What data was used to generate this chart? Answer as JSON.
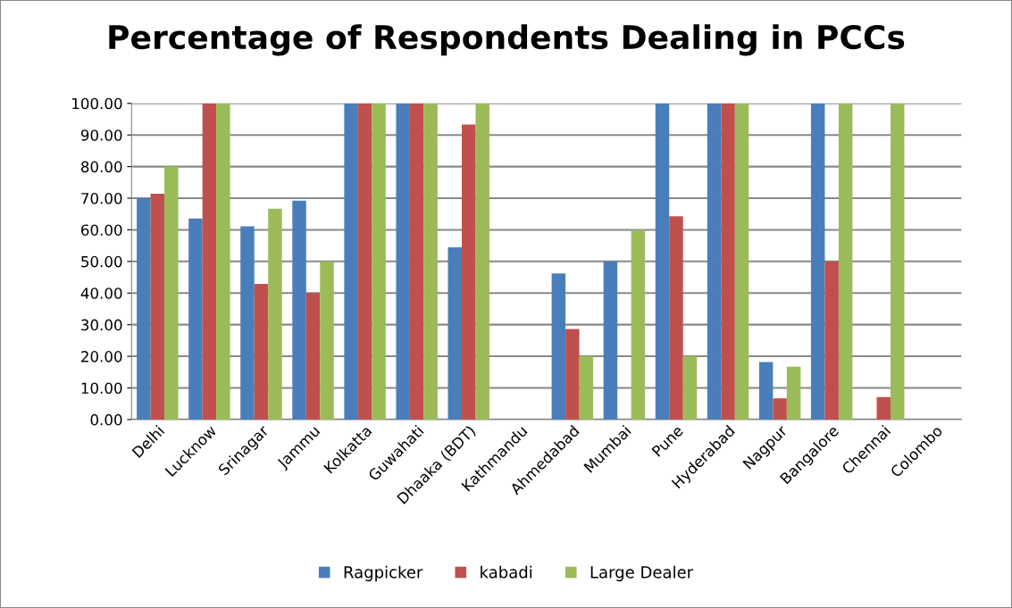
{
  "chart_data": {
    "type": "bar",
    "title": "Percentage of Respondents Dealing in PCCs",
    "categories": [
      "Delhi",
      "Lucknow",
      "Srinagar",
      "Jammu",
      "Kolkatta",
      "Guwahati",
      "Dhaaka (BDT)",
      "Kathmandu",
      "Ahmedabad",
      "Mumbai",
      "Pune",
      "Hyderabad",
      "Nagpur",
      "Bangalore",
      "Chennai",
      "Colombo"
    ],
    "series": [
      {
        "name": "Ragpicker",
        "color": "#4a7ebb",
        "values": [
          70,
          63.6,
          61.1,
          69.2,
          100,
          100,
          54.5,
          0,
          46.2,
          50,
          100,
          100,
          18.2,
          100,
          0,
          0
        ]
      },
      {
        "name": "kabadi",
        "color": "#c0504d",
        "values": [
          71.4,
          100,
          42.9,
          40,
          100,
          100,
          93.3,
          0,
          28.6,
          0,
          64.3,
          100,
          6.7,
          50,
          7.1,
          0
        ]
      },
      {
        "name": "Large Dealer",
        "color": "#9bbb59",
        "values": [
          80,
          100,
          66.7,
          50,
          100,
          100,
          100,
          0,
          20,
          60,
          20,
          100,
          16.7,
          100,
          100,
          0
        ]
      }
    ],
    "ylim": [
      0,
      100
    ],
    "yticks": [
      {
        "value": 0,
        "label": "0.00"
      },
      {
        "value": 10,
        "label": "10.00"
      },
      {
        "value": 20,
        "label": "20.00"
      },
      {
        "value": 30,
        "label": "30.00"
      },
      {
        "value": 40,
        "label": "40.00"
      },
      {
        "value": 50,
        "label": "50.00"
      },
      {
        "value": 60,
        "label": "60.00"
      },
      {
        "value": 70,
        "label": "70.00"
      },
      {
        "value": 80,
        "label": "80.00"
      },
      {
        "value": 90,
        "label": "90.00"
      },
      {
        "value": 100,
        "label": "100.00"
      }
    ],
    "grid": "y",
    "legend": "bottom"
  }
}
